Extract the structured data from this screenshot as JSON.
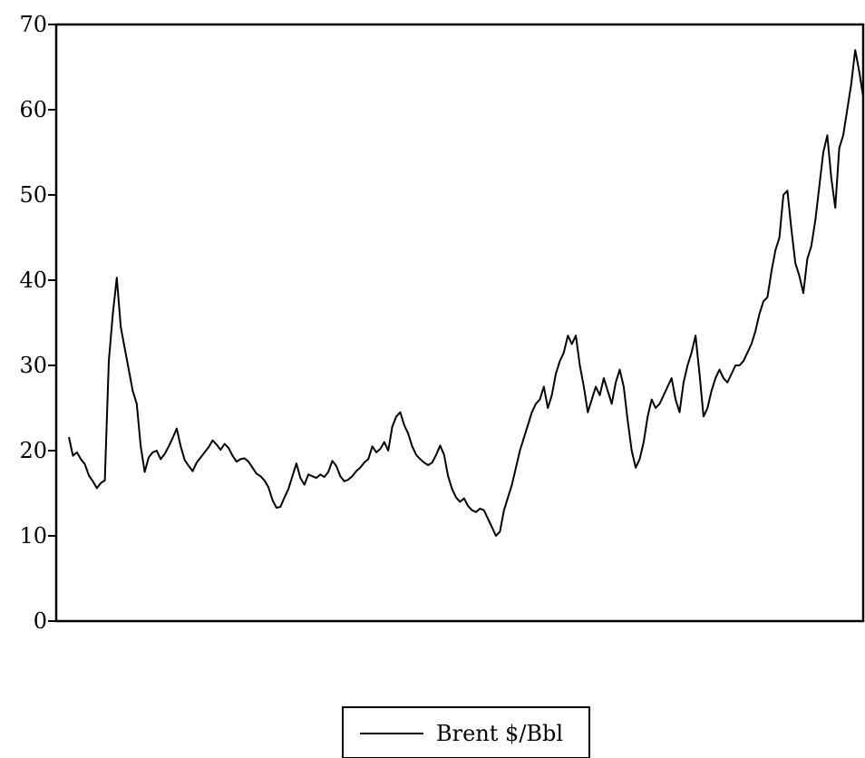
{
  "chart_data": {
    "type": "line",
    "title": "",
    "xlabel": "",
    "ylabel": "",
    "ylim": [
      0,
      70
    ],
    "yticks": [
      0,
      10,
      20,
      30,
      40,
      50,
      60,
      70
    ],
    "grid": false,
    "legend_placement": "bottom-center",
    "line_color": "#000000",
    "series": [
      {
        "name": "Brent $/Bbl",
        "values": [
          21.6,
          19.4,
          19.8,
          19.0,
          18.4,
          17.1,
          16.4,
          15.6,
          16.2,
          16.5,
          30.5,
          36.0,
          40.3,
          34.5,
          32.0,
          29.5,
          27.0,
          25.5,
          20.5,
          17.5,
          19.2,
          19.8,
          20.0,
          19.0,
          19.6,
          20.5,
          21.5,
          22.6,
          20.5,
          18.9,
          18.2,
          17.6,
          18.6,
          19.2,
          19.8,
          20.4,
          21.2,
          20.7,
          20.1,
          20.8,
          20.3,
          19.4,
          18.7,
          19.0,
          19.1,
          18.7,
          18.0,
          17.3,
          17.0,
          16.5,
          15.7,
          14.2,
          13.3,
          13.4,
          14.5,
          15.5,
          17.0,
          18.5,
          16.8,
          16.0,
          17.2,
          17.0,
          16.8,
          17.2,
          16.9,
          17.5,
          18.8,
          18.2,
          17.0,
          16.4,
          16.6,
          17.0,
          17.6,
          18.0,
          18.6,
          19.0,
          20.5,
          19.8,
          20.2,
          21.0,
          20.0,
          22.8,
          24.0,
          24.5,
          23.0,
          22.0,
          20.5,
          19.5,
          19.0,
          18.6,
          18.3,
          18.6,
          19.5,
          20.6,
          19.5,
          17.0,
          15.5,
          14.5,
          14.0,
          14.4,
          13.5,
          13.0,
          12.8,
          13.2,
          13.0,
          12.0,
          11.0,
          10.0,
          10.5,
          13.0,
          14.5,
          16.0,
          18.0,
          20.0,
          21.5,
          23.0,
          24.5,
          25.5,
          26.0,
          27.5,
          25.0,
          26.5,
          29.0,
          30.5,
          31.5,
          33.5,
          32.5,
          33.5,
          30.0,
          27.5,
          24.5,
          26.0,
          27.5,
          26.5,
          28.5,
          27.0,
          25.5,
          28.0,
          29.5,
          27.5,
          23.5,
          20.0,
          18.0,
          19.0,
          21.0,
          24.0,
          26.0,
          25.0,
          25.5,
          26.5,
          27.5,
          28.5,
          26.0,
          24.5,
          28.0,
          30.0,
          31.5,
          33.5,
          29.0,
          24.0,
          25.0,
          27.0,
          28.5,
          29.5,
          28.5,
          28.0,
          29.0,
          30.0,
          30.0,
          30.5,
          31.5,
          32.5,
          34.0,
          36.0,
          37.5,
          38.0,
          41.0,
          43.5,
          45.0,
          50.0,
          50.5,
          46.0,
          42.0,
          40.5,
          38.5,
          42.5,
          44.0,
          47.0,
          51.0,
          55.0,
          57.0,
          52.0,
          48.5,
          55.5,
          57.0,
          60.0,
          63.0,
          67.0,
          64.5,
          61.5
        ]
      }
    ]
  }
}
